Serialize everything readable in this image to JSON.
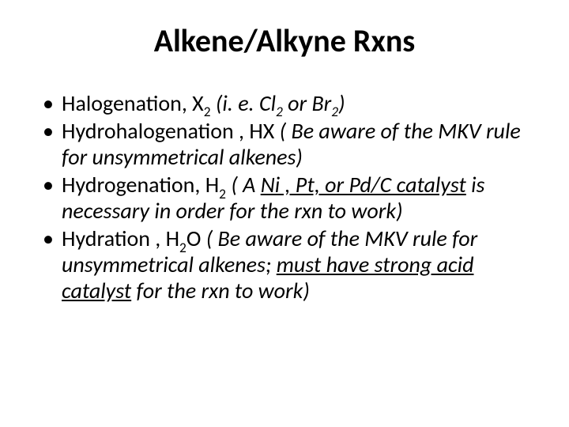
{
  "slide": {
    "background_color": "#ffffff",
    "text_color": "#000000",
    "font_family": "Calibri",
    "title": {
      "text": "Alkene/Alkyne Rxns",
      "fontsize": 40,
      "weight": 700,
      "align": "center"
    },
    "bullets": {
      "fontsize": 28,
      "marker": "•",
      "items": [
        {
          "plain": "Halogenation, X",
          "sub1": "2",
          "gap": "   ",
          "ital1": "(i. e. Cl",
          "sub2": "2",
          "ital2": " or Br",
          "sub3": "2",
          "ital3": ")"
        },
        {
          "plain": "Hydrohalogenation , HX   ",
          "ital1": "( Be aware of the MKV rule for unsymmetrical alkenes)"
        },
        {
          "plain": "Hydrogenation,  H",
          "sub1": "2",
          "gap": "    ",
          "ital1": "( A  ",
          "ul1": "Ni , Pt, or Pd/C  catalyst",
          "ital2": "  is necessary  in order for the rxn to work)"
        },
        {
          "plain": "Hydration , H",
          "sub1": "2",
          "plain2": "O   ",
          "ital1": "( Be aware of the MKV rule for unsymmetrical alkenes;  ",
          "ul1": "must have strong acid catalyst",
          "ital2": " for the rxn to work)"
        }
      ]
    }
  }
}
